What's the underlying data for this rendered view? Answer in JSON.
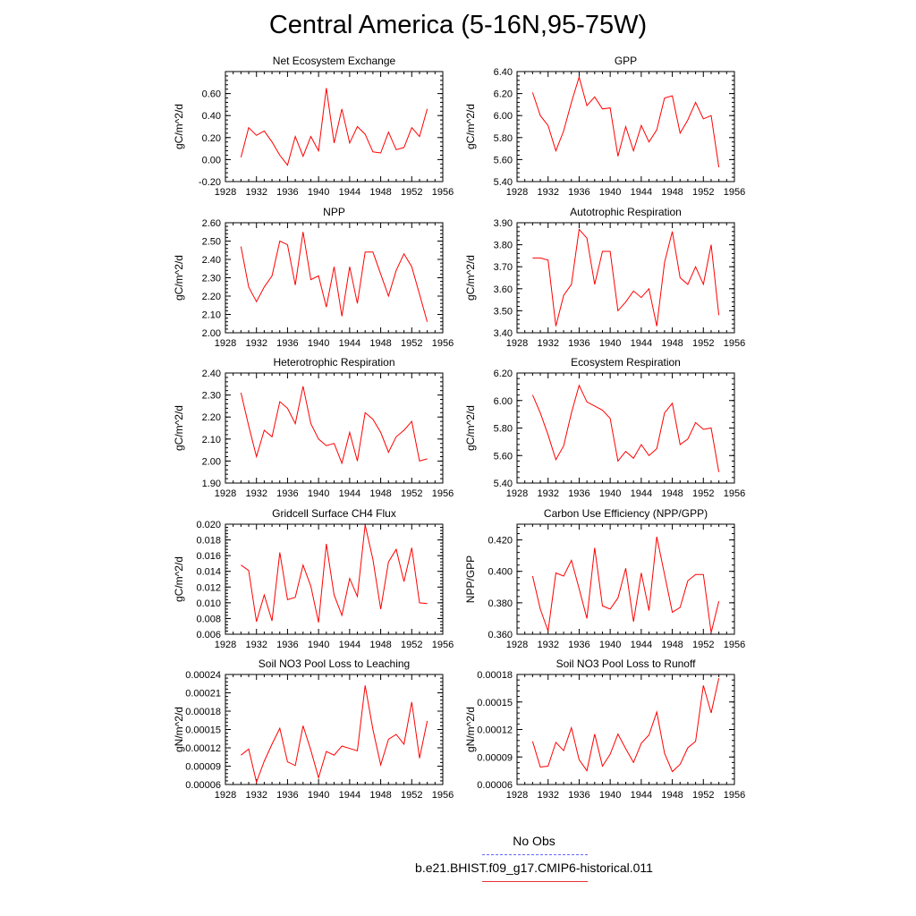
{
  "figure": {
    "title": "Central America (5-16N,95-75W)"
  },
  "legend": [
    {
      "label": "No Obs",
      "color": "#6666ff",
      "style": "dashed"
    },
    {
      "label": "b.e21.BHIST.f09_g17.CMIP6-historical.011",
      "color": "#e8303a",
      "style": "solid"
    }
  ],
  "chart_data": [
    {
      "type": "line",
      "title": "Net Ecosystem Exchange",
      "ylabel": "gC/m^2/d",
      "xlim": [
        1928,
        1956
      ],
      "xticks": [
        "1928",
        "1932",
        "1936",
        "1940",
        "1944",
        "1948",
        "1952",
        "1956"
      ],
      "ylim": [
        -0.2,
        0.8
      ],
      "yticks": [
        "-0.20",
        "0.00",
        "0.20",
        "0.40",
        "0.60"
      ],
      "ytick_values": [
        -0.2,
        0.0,
        0.2,
        0.4,
        0.6
      ],
      "x": [
        1930,
        1931,
        1932,
        1933,
        1934,
        1935,
        1936,
        1937,
        1938,
        1939,
        1940,
        1941,
        1942,
        1943,
        1944,
        1945,
        1946,
        1947,
        1948,
        1949,
        1950,
        1951,
        1952,
        1953,
        1954
      ],
      "series": [
        {
          "name": "b.e21.BHIST.f09_g17.CMIP6-historical.011",
          "color": "#ff0000",
          "values": [
            0.02,
            0.29,
            0.22,
            0.26,
            0.16,
            0.04,
            -0.05,
            0.21,
            0.03,
            0.21,
            0.08,
            0.65,
            0.15,
            0.46,
            0.15,
            0.3,
            0.23,
            0.07,
            0.06,
            0.25,
            0.09,
            0.11,
            0.29,
            0.21,
            0.46
          ]
        }
      ]
    },
    {
      "type": "line",
      "title": "GPP",
      "ylabel": "gC/m^2/d",
      "xlim": [
        1928,
        1956
      ],
      "xticks": [
        "1928",
        "1932",
        "1936",
        "1940",
        "1944",
        "1948",
        "1952",
        "1956"
      ],
      "ylim": [
        5.4,
        6.4
      ],
      "yticks": [
        "5.40",
        "5.60",
        "5.80",
        "6.00",
        "6.20",
        "6.40"
      ],
      "ytick_values": [
        5.4,
        5.6,
        5.8,
        6.0,
        6.2,
        6.4
      ],
      "x": [
        1930,
        1931,
        1932,
        1933,
        1934,
        1935,
        1936,
        1937,
        1938,
        1939,
        1940,
        1941,
        1942,
        1943,
        1944,
        1945,
        1946,
        1947,
        1948,
        1949,
        1950,
        1951,
        1952,
        1953,
        1954
      ],
      "series": [
        {
          "name": "b.e21.BHIST.f09_g17.CMIP6-historical.011",
          "color": "#ff0000",
          "values": [
            6.21,
            6.0,
            5.91,
            5.68,
            5.86,
            6.12,
            6.35,
            6.09,
            6.17,
            6.06,
            6.07,
            5.63,
            5.9,
            5.68,
            5.91,
            5.76,
            5.87,
            6.16,
            6.18,
            5.84,
            5.96,
            6.12,
            5.97,
            6.0,
            5.53
          ]
        }
      ]
    },
    {
      "type": "line",
      "title": "NPP",
      "ylabel": "gC/m^2/d",
      "xlim": [
        1928,
        1956
      ],
      "xticks": [
        "1928",
        "1932",
        "1936",
        "1940",
        "1944",
        "1948",
        "1952",
        "1956"
      ],
      "ylim": [
        2.0,
        2.6
      ],
      "yticks": [
        "2.00",
        "2.10",
        "2.20",
        "2.30",
        "2.40",
        "2.50",
        "2.60"
      ],
      "ytick_values": [
        2.0,
        2.1,
        2.2,
        2.3,
        2.4,
        2.5,
        2.6
      ],
      "x": [
        1930,
        1931,
        1932,
        1933,
        1934,
        1935,
        1936,
        1937,
        1938,
        1939,
        1940,
        1941,
        1942,
        1943,
        1944,
        1945,
        1946,
        1947,
        1948,
        1949,
        1950,
        1951,
        1952,
        1953,
        1954
      ],
      "series": [
        {
          "name": "b.e21.BHIST.f09_g17.CMIP6-historical.011",
          "color": "#ff0000",
          "values": [
            2.47,
            2.25,
            2.17,
            2.25,
            2.31,
            2.5,
            2.48,
            2.26,
            2.55,
            2.29,
            2.31,
            2.14,
            2.36,
            2.09,
            2.36,
            2.16,
            2.44,
            2.44,
            2.32,
            2.2,
            2.34,
            2.43,
            2.36,
            2.21,
            2.06
          ]
        }
      ]
    },
    {
      "type": "line",
      "title": "Autotrophic Respiration",
      "ylabel": "gC/m^2/d",
      "xlim": [
        1928,
        1956
      ],
      "xticks": [
        "1928",
        "1932",
        "1936",
        "1940",
        "1944",
        "1948",
        "1952",
        "1956"
      ],
      "ylim": [
        3.4,
        3.9
      ],
      "yticks": [
        "3.40",
        "3.50",
        "3.60",
        "3.70",
        "3.80",
        "3.90"
      ],
      "ytick_values": [
        3.4,
        3.5,
        3.6,
        3.7,
        3.8,
        3.9
      ],
      "x": [
        1930,
        1931,
        1932,
        1933,
        1934,
        1935,
        1936,
        1937,
        1938,
        1939,
        1940,
        1941,
        1942,
        1943,
        1944,
        1945,
        1946,
        1947,
        1948,
        1949,
        1950,
        1951,
        1952,
        1953,
        1954
      ],
      "series": [
        {
          "name": "b.e21.BHIST.f09_g17.CMIP6-historical.011",
          "color": "#ff0000",
          "values": [
            3.74,
            3.74,
            3.73,
            3.43,
            3.57,
            3.62,
            3.87,
            3.83,
            3.62,
            3.77,
            3.77,
            3.5,
            3.54,
            3.59,
            3.56,
            3.6,
            3.43,
            3.72,
            3.86,
            3.65,
            3.62,
            3.7,
            3.62,
            3.8,
            3.48
          ]
        }
      ]
    },
    {
      "type": "line",
      "title": "Heterotrophic Respiration",
      "ylabel": "gC/m^2/d",
      "xlim": [
        1928,
        1956
      ],
      "xticks": [
        "1928",
        "1932",
        "1936",
        "1940",
        "1944",
        "1948",
        "1952",
        "1956"
      ],
      "ylim": [
        1.9,
        2.4
      ],
      "yticks": [
        "1.90",
        "2.00",
        "2.10",
        "2.20",
        "2.30",
        "2.40"
      ],
      "ytick_values": [
        1.9,
        2.0,
        2.1,
        2.2,
        2.3,
        2.4
      ],
      "x": [
        1930,
        1931,
        1932,
        1933,
        1934,
        1935,
        1936,
        1937,
        1938,
        1939,
        1940,
        1941,
        1942,
        1943,
        1944,
        1945,
        1946,
        1947,
        1948,
        1949,
        1950,
        1951,
        1952,
        1953,
        1954
      ],
      "series": [
        {
          "name": "b.e21.BHIST.f09_g17.CMIP6-historical.011",
          "color": "#ff0000",
          "values": [
            2.31,
            2.16,
            2.02,
            2.14,
            2.11,
            2.27,
            2.24,
            2.17,
            2.34,
            2.17,
            2.1,
            2.07,
            2.08,
            1.99,
            2.13,
            2.0,
            2.22,
            2.19,
            2.13,
            2.04,
            2.11,
            2.14,
            2.18,
            2.0,
            2.01
          ]
        }
      ]
    },
    {
      "type": "line",
      "title": "Ecosystem Respiration",
      "ylabel": "gC/m^2/d",
      "xlim": [
        1928,
        1956
      ],
      "xticks": [
        "1928",
        "1932",
        "1936",
        "1940",
        "1944",
        "1948",
        "1952",
        "1956"
      ],
      "ylim": [
        5.4,
        6.2
      ],
      "yticks": [
        "5.40",
        "5.60",
        "5.80",
        "6.00",
        "6.20"
      ],
      "ytick_values": [
        5.4,
        5.6,
        5.8,
        6.0,
        6.2
      ],
      "x": [
        1930,
        1931,
        1932,
        1933,
        1934,
        1935,
        1936,
        1937,
        1938,
        1939,
        1940,
        1941,
        1942,
        1943,
        1944,
        1945,
        1946,
        1947,
        1948,
        1949,
        1950,
        1951,
        1952,
        1953,
        1954
      ],
      "series": [
        {
          "name": "b.e21.BHIST.f09_g17.CMIP6-historical.011",
          "color": "#ff0000",
          "values": [
            6.04,
            5.91,
            5.75,
            5.57,
            5.67,
            5.91,
            6.11,
            5.99,
            5.96,
            5.93,
            5.87,
            5.56,
            5.63,
            5.58,
            5.68,
            5.6,
            5.65,
            5.91,
            5.98,
            5.68,
            5.72,
            5.84,
            5.79,
            5.8,
            5.48
          ]
        }
      ]
    },
    {
      "type": "line",
      "title": "Gridcell Surface CH4 Flux",
      "ylabel": "gC/m^2/d",
      "xlim": [
        1928,
        1956
      ],
      "xticks": [
        "1928",
        "1932",
        "1936",
        "1940",
        "1944",
        "1948",
        "1952",
        "1956"
      ],
      "ylim": [
        0.006,
        0.02
      ],
      "yticks": [
        "0.006",
        "0.008",
        "0.010",
        "0.012",
        "0.014",
        "0.016",
        "0.018",
        "0.020"
      ],
      "ytick_values": [
        0.006,
        0.008,
        0.01,
        0.012,
        0.014,
        0.016,
        0.018,
        0.02
      ],
      "x": [
        1930,
        1931,
        1932,
        1933,
        1934,
        1935,
        1936,
        1937,
        1938,
        1939,
        1940,
        1941,
        1942,
        1943,
        1944,
        1945,
        1946,
        1947,
        1948,
        1949,
        1950,
        1951,
        1952,
        1953,
        1954
      ],
      "series": [
        {
          "name": "b.e21.BHIST.f09_g17.CMIP6-historical.011",
          "color": "#ff0000",
          "values": [
            0.0148,
            0.0141,
            0.0076,
            0.011,
            0.0077,
            0.0164,
            0.0104,
            0.0107,
            0.0148,
            0.0121,
            0.0075,
            0.0175,
            0.011,
            0.0084,
            0.0131,
            0.0108,
            0.0199,
            0.0155,
            0.0092,
            0.0152,
            0.0168,
            0.0127,
            0.017,
            0.01,
            0.0099
          ]
        }
      ]
    },
    {
      "type": "line",
      "title": "Carbon Use Efficiency (NPP/GPP)",
      "ylabel": "NPP/GPP",
      "xlim": [
        1928,
        1956
      ],
      "xticks": [
        "1928",
        "1932",
        "1936",
        "1940",
        "1944",
        "1948",
        "1952",
        "1956"
      ],
      "ylim": [
        0.36,
        0.43
      ],
      "yticks": [
        "0.360",
        "0.380",
        "0.400",
        "0.420"
      ],
      "ytick_values": [
        0.36,
        0.38,
        0.4,
        0.42
      ],
      "x": [
        1930,
        1931,
        1932,
        1933,
        1934,
        1935,
        1936,
        1937,
        1938,
        1939,
        1940,
        1941,
        1942,
        1943,
        1944,
        1945,
        1946,
        1947,
        1948,
        1949,
        1950,
        1951,
        1952,
        1953,
        1954
      ],
      "series": [
        {
          "name": "b.e21.BHIST.f09_g17.CMIP6-historical.011",
          "color": "#ff0000",
          "values": [
            0.397,
            0.376,
            0.362,
            0.399,
            0.397,
            0.407,
            0.389,
            0.37,
            0.415,
            0.378,
            0.376,
            0.383,
            0.402,
            0.368,
            0.399,
            0.375,
            0.422,
            0.398,
            0.374,
            0.377,
            0.394,
            0.398,
            0.398,
            0.361,
            0.381
          ]
        }
      ]
    },
    {
      "type": "line",
      "title": "Soil NO3 Pool Loss to Leaching",
      "ylabel": "gN/m^2/d",
      "xlim": [
        1928,
        1956
      ],
      "xticks": [
        "1928",
        "1932",
        "1936",
        "1940",
        "1944",
        "1948",
        "1952",
        "1956"
      ],
      "ylim": [
        6e-05,
        0.00024
      ],
      "yticks": [
        "0.00006",
        "0.00009",
        "0.00012",
        "0.00015",
        "0.00018",
        "0.00021",
        "0.00024"
      ],
      "ytick_values": [
        6e-05,
        9e-05,
        0.00012,
        0.00015,
        0.00018,
        0.00021,
        0.00024
      ],
      "x": [
        1930,
        1931,
        1932,
        1933,
        1934,
        1935,
        1936,
        1937,
        1938,
        1939,
        1940,
        1941,
        1942,
        1943,
        1944,
        1945,
        1946,
        1947,
        1948,
        1949,
        1950,
        1951,
        1952,
        1953,
        1954
      ],
      "series": [
        {
          "name": "b.e21.BHIST.f09_g17.CMIP6-historical.011",
          "color": "#ff0000",
          "values": [
            0.000108,
            0.000118,
            6.4e-05,
            9.8e-05,
            0.000126,
            0.000152,
            9.7e-05,
            9.1e-05,
            0.000156,
            0.000116,
            7.1e-05,
            0.000114,
            0.000108,
            0.000123,
            0.000119,
            0.000115,
            0.000222,
            0.00015,
            9.2e-05,
            0.000134,
            0.000142,
            0.000126,
            0.000195,
            0.000103,
            0.000164
          ]
        }
      ]
    },
    {
      "type": "line",
      "title": "Soil NO3 Pool Loss to Runoff",
      "ylabel": "gN/m^2/d",
      "xlim": [
        1928,
        1956
      ],
      "xticks": [
        "1928",
        "1932",
        "1936",
        "1940",
        "1944",
        "1948",
        "1952",
        "1956"
      ],
      "ylim": [
        6e-05,
        0.00018
      ],
      "yticks": [
        "0.00006",
        "0.00009",
        "0.00012",
        "0.00015",
        "0.00018"
      ],
      "ytick_values": [
        6e-05,
        9e-05,
        0.00012,
        0.00015,
        0.00018
      ],
      "x": [
        1930,
        1931,
        1932,
        1933,
        1934,
        1935,
        1936,
        1937,
        1938,
        1939,
        1940,
        1941,
        1942,
        1943,
        1944,
        1945,
        1946,
        1947,
        1948,
        1949,
        1950,
        1951,
        1952,
        1953,
        1954
      ],
      "series": [
        {
          "name": "b.e21.BHIST.f09_g17.CMIP6-historical.011",
          "color": "#ff0000",
          "values": [
            0.000107,
            7.9e-05,
            8e-05,
            0.000106,
            9.7e-05,
            0.000122,
            8.7e-05,
            7.5e-05,
            0.000115,
            8e-05,
            9.3e-05,
            0.000115,
            9.9e-05,
            8.4e-05,
            0.000105,
            0.000114,
            0.000139,
            9.4e-05,
            7.4e-05,
            8.2e-05,
            0.0001,
            0.000107,
            0.000168,
            0.000138,
            0.000176
          ]
        }
      ]
    }
  ]
}
